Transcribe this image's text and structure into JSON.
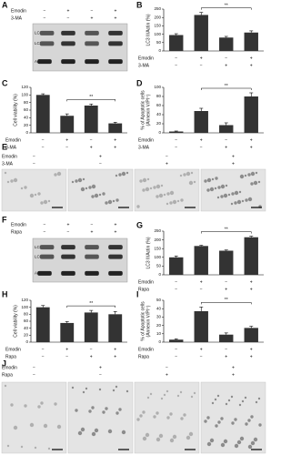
{
  "chart_data": [
    {
      "type": "bar",
      "panel": "B",
      "ylabel": [
        "LC3 II/Actin (%)"
      ],
      "values": [
        95,
        215,
        80,
        110
      ],
      "errors": [
        8,
        15,
        7,
        10
      ],
      "color": "#333333",
      "ylim": [
        0,
        250
      ],
      "yticks": [
        0,
        50,
        100,
        150,
        200,
        250
      ],
      "annotations": [
        {
          "text": "**",
          "from": 1,
          "to": 3
        }
      ],
      "treatments": [
        {
          "name": "Emodin",
          "signs": [
            "−",
            "+",
            "−",
            "+"
          ]
        },
        {
          "name": "3-MA",
          "signs": [
            "−",
            "−",
            "+",
            "+"
          ]
        }
      ]
    },
    {
      "type": "bar",
      "panel": "C",
      "ylabel": [
        "Cell viability (%)"
      ],
      "values": [
        100,
        45,
        72,
        25
      ],
      "errors": [
        3,
        5,
        4,
        3
      ],
      "color": "#333333",
      "ylim": [
        0,
        120
      ],
      "yticks": [
        0,
        20,
        40,
        60,
        80,
        100,
        120
      ],
      "annotations": [
        {
          "text": "**",
          "from": 1,
          "to": 3
        }
      ],
      "treatments": [
        {
          "name": "Emodin",
          "signs": [
            "−",
            "+",
            "−",
            "+"
          ]
        },
        {
          "name": "3-MA",
          "signs": [
            "−",
            "−",
            "+",
            "+"
          ]
        }
      ]
    },
    {
      "type": "bar",
      "panel": "D",
      "ylabel": [
        "% of Apoptotic cells",
        "(Annexin V/PI⁺)"
      ],
      "values": [
        3,
        48,
        17,
        80
      ],
      "errors": [
        1,
        6,
        5,
        8
      ],
      "color": "#333333",
      "ylim": [
        0,
        100
      ],
      "yticks": [
        0,
        20,
        40,
        60,
        80,
        100
      ],
      "annotations": [
        {
          "text": "**",
          "from": 1,
          "to": 3
        }
      ],
      "treatments": [
        {
          "name": "Emodin",
          "signs": [
            "−",
            "+",
            "−",
            "+"
          ]
        },
        {
          "name": "3-MA",
          "signs": [
            "−",
            "−",
            "+",
            "+"
          ]
        }
      ]
    },
    {
      "type": "bar",
      "panel": "G",
      "ylabel": [
        "LC3 II/Actin (%)"
      ],
      "values": [
        100,
        165,
        138,
        215
      ],
      "errors": [
        8,
        4,
        4,
        6
      ],
      "color": "#333333",
      "ylim": [
        0,
        250
      ],
      "yticks": [
        0,
        50,
        100,
        150,
        200,
        250
      ],
      "annotations": [
        {
          "text": "**",
          "from": 1,
          "to": 3
        }
      ],
      "treatments": [
        {
          "name": "Emodin",
          "signs": [
            "−",
            "+",
            "−",
            "+"
          ]
        },
        {
          "name": "Rapa",
          "signs": [
            "−",
            "−",
            "+",
            "+"
          ]
        }
      ]
    },
    {
      "type": "bar",
      "panel": "H",
      "ylabel": [
        "Cell viability (%)"
      ],
      "values": [
        100,
        55,
        85,
        80
      ],
      "errors": [
        5,
        4,
        6,
        8
      ],
      "color": "#333333",
      "ylim": [
        0,
        120
      ],
      "yticks": [
        0,
        20,
        40,
        60,
        80,
        100,
        120
      ],
      "annotations": [
        {
          "text": "**",
          "from": 1,
          "to": 3
        }
      ],
      "treatments": [
        {
          "name": "Emodin",
          "signs": [
            "−",
            "+",
            "−",
            "+"
          ]
        },
        {
          "name": "Rapa",
          "signs": [
            "−",
            "−",
            "+",
            "+"
          ]
        }
      ]
    },
    {
      "type": "bar",
      "panel": "I",
      "ylabel": [
        "% of Apoptotic cells",
        "(Annexin V/PI⁺)"
      ],
      "values": [
        3,
        37,
        9,
        17
      ],
      "errors": [
        1,
        5,
        2,
        2
      ],
      "color": "#333333",
      "ylim": [
        0,
        50
      ],
      "yticks": [
        0,
        10,
        20,
        30,
        40,
        50
      ],
      "annotations": [
        {
          "text": "**",
          "from": 1,
          "to": 3
        }
      ],
      "treatments": [
        {
          "name": "Emodin",
          "signs": [
            "−",
            "+",
            "−",
            "+"
          ]
        },
        {
          "name": "Rapa",
          "signs": [
            "−",
            "−",
            "+",
            "+"
          ]
        }
      ]
    }
  ],
  "blots": [
    {
      "panel": "A",
      "bands": [
        "LC3B-I",
        "LC3B-II",
        "Actin"
      ],
      "treatments": [
        {
          "name": "Emodin",
          "signs": [
            "−",
            "+",
            "−",
            "+"
          ]
        },
        {
          "name": "3-MA",
          "signs": [
            "−",
            "−",
            "+",
            "+"
          ]
        }
      ]
    },
    {
      "panel": "F",
      "bands": [
        "LC3B-I",
        "LC3B-II",
        "Actin"
      ],
      "treatments": [
        {
          "name": "Emodin",
          "signs": [
            "−",
            "+",
            "−",
            "+"
          ]
        },
        {
          "name": "Rapa",
          "signs": [
            "−",
            "−",
            "+",
            "+"
          ]
        }
      ]
    }
  ],
  "micrographs": [
    {
      "panel": "E",
      "treatments": [
        {
          "name": "Emodin",
          "signs": [
            "−",
            "+",
            "−",
            "+"
          ]
        },
        {
          "name": "3-MA",
          "signs": [
            "−",
            "−",
            "+",
            "+"
          ]
        }
      ]
    },
    {
      "panel": "J",
      "treatments": [
        {
          "name": "Emodin",
          "signs": [
            "−",
            "+",
            "−",
            "+"
          ]
        },
        {
          "name": "Rapa",
          "signs": [
            "−",
            "−",
            "+",
            "+"
          ]
        }
      ]
    }
  ]
}
